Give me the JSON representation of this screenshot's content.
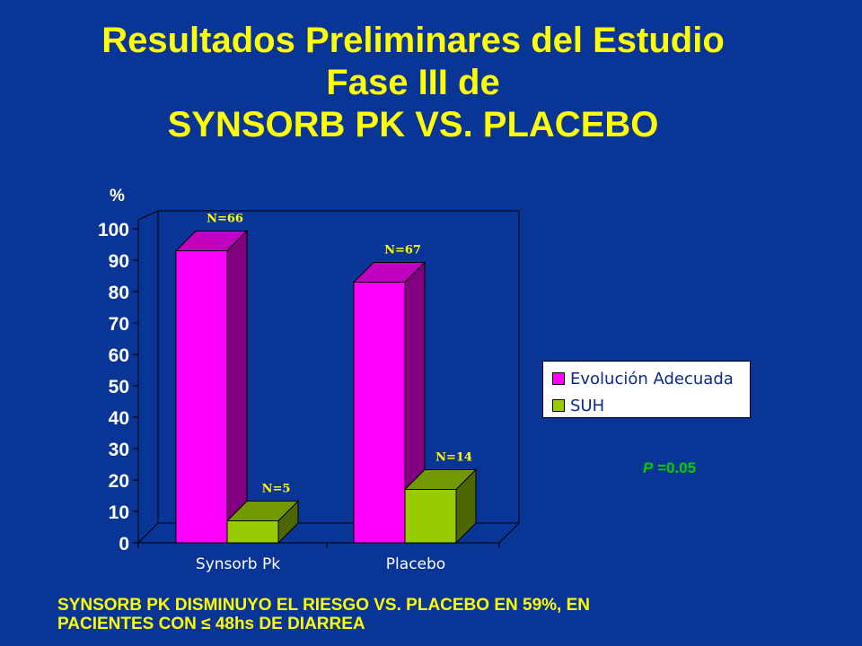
{
  "title": {
    "line1": "Resultados Preliminares del Estudio",
    "line2": "Fase III de",
    "line3": "SYNSORB PK VS. PLACEBO"
  },
  "chart_data": {
    "type": "bar",
    "style": "3d-clustered",
    "ylabel": "%",
    "ylim": [
      0,
      100
    ],
    "yticks": [
      0,
      10,
      20,
      30,
      40,
      50,
      60,
      70,
      80,
      90,
      100
    ],
    "categories": [
      "Synsorb Pk",
      "Placebo"
    ],
    "series": [
      {
        "name": "Evolución Adecuada",
        "color": "#ff00ff",
        "values": [
          93,
          83
        ],
        "labels": [
          "N=66",
          "N=67"
        ]
      },
      {
        "name": "SUH",
        "color": "#99cc00",
        "values": [
          7,
          17
        ],
        "labels": [
          "N=5",
          "N=14"
        ]
      }
    ],
    "legend_position": "right",
    "grid": false
  },
  "pvalue": {
    "symbol": "P",
    "text": " =0.05"
  },
  "footer": {
    "line1": "SYNSORB PK DISMINUYO EL RIESGO VS. PLACEBO EN 59%, EN",
    "line2": "PACIENTES CON ≤ 48hs DE DIARREA"
  }
}
